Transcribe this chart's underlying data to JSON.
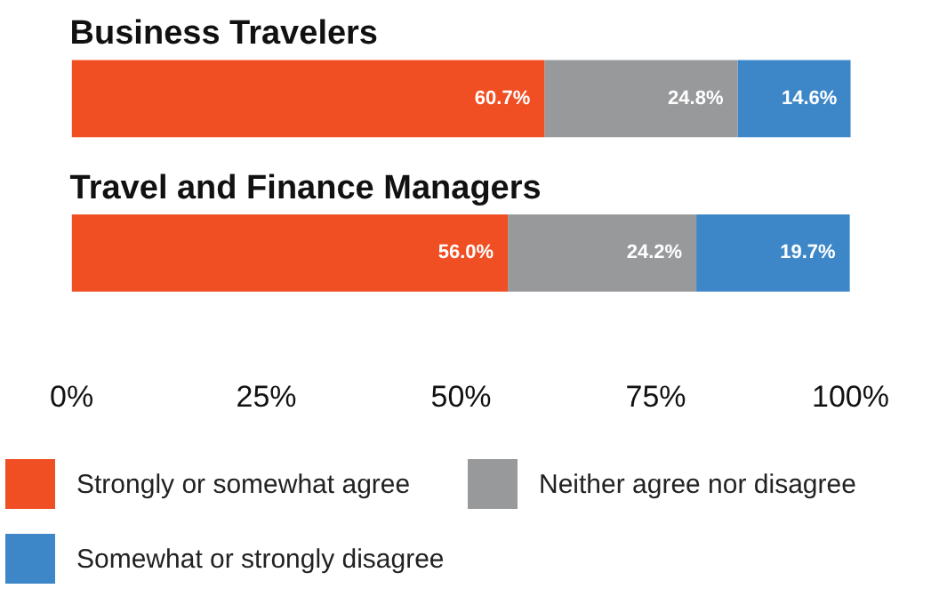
{
  "chart_data": {
    "type": "bar",
    "orientation": "horizontal",
    "stacked": true,
    "categories": [
      "Business Travelers",
      "Travel and Finance Managers"
    ],
    "series": [
      {
        "name": "Strongly or somewhat agree",
        "color": "#f04e23",
        "values": [
          60.7,
          56.0
        ],
        "value_labels": [
          "60.7%",
          "56.0%"
        ]
      },
      {
        "name": "Neither agree nor disagree",
        "color": "#98999b",
        "values": [
          24.8,
          24.2
        ],
        "value_labels": [
          "24.8%",
          "24.2%"
        ]
      },
      {
        "name": "Somewhat or strongly disagree",
        "color": "#3d87c9",
        "values": [
          14.6,
          19.7
        ],
        "value_labels": [
          "14.6%",
          "19.7%"
        ]
      }
    ],
    "xlim": [
      0,
      100
    ],
    "xticks": [
      {
        "value": 0,
        "label": "0%"
      },
      {
        "value": 25,
        "label": "25%"
      },
      {
        "value": 50,
        "label": "50%"
      },
      {
        "value": 75,
        "label": "75%"
      },
      {
        "value": 100,
        "label": "100%"
      }
    ],
    "grid": false,
    "legend": "bottom"
  }
}
